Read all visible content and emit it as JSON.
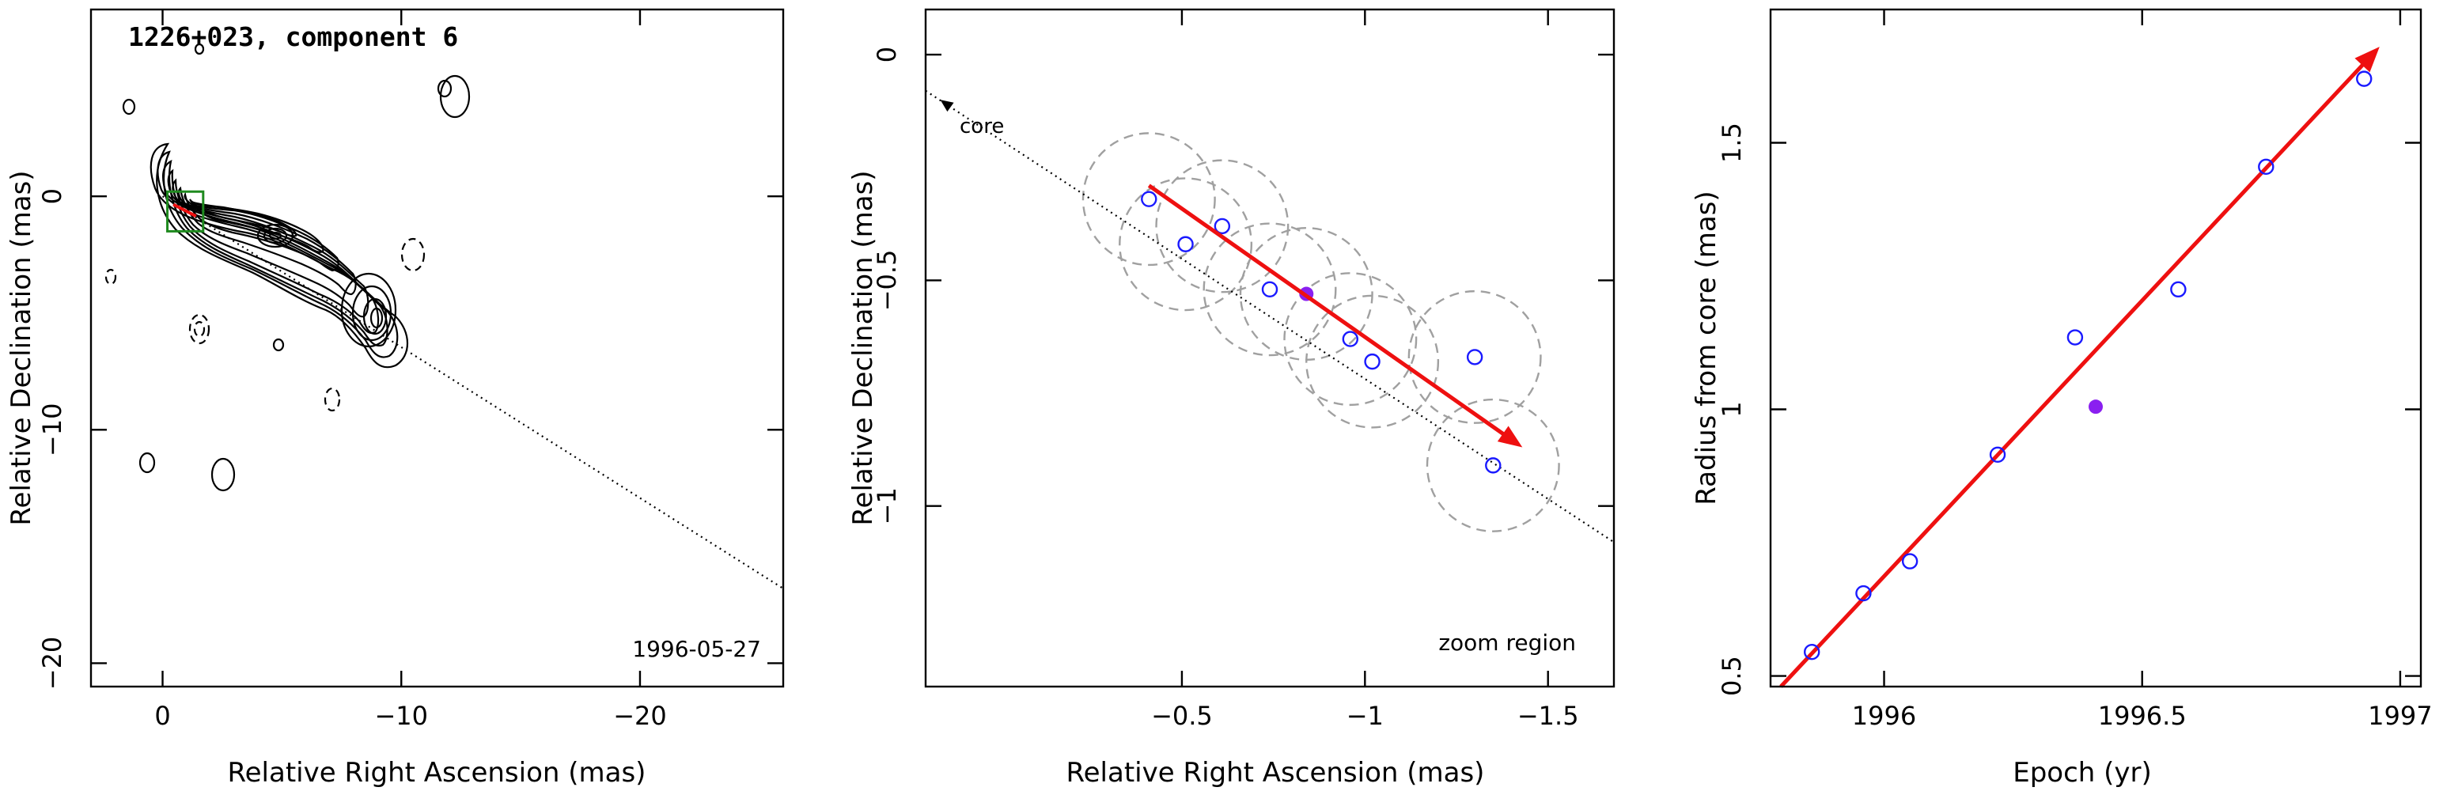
{
  "colors": {
    "motion_arrow": "#ee1010",
    "open_markers": "#1a1aff",
    "highlight_marker": "#8a1ff0",
    "beam_circles": "#a0a0a0",
    "zoom_box": "#1f8a1f"
  },
  "chart_data": [
    {
      "type": "scatter",
      "panel": "contour-map",
      "title": "1226+023, component 6",
      "annotation": "1996-05-27",
      "xlabel": "Relative Right Ascension (mas)",
      "ylabel": "Relative Declination (mas)",
      "xlim": [
        3,
        -26
      ],
      "ylim": [
        8,
        -21
      ],
      "xticks": [
        0,
        -10,
        -20
      ],
      "xtick_labels": [
        "0",
        "−10",
        "−20"
      ],
      "yticks": [
        0,
        -10,
        -20
      ],
      "ytick_labels": [
        "0",
        "−10",
        "−20"
      ],
      "x_axis_reversed": true,
      "note": "Jet contour map with dotted line along the component trajectory",
      "trajectory_line": {
        "x": [
          0,
          -26
        ],
        "y": [
          0,
          -16.8
        ]
      },
      "zoom_region": {
        "x": [
          -0.2,
          -1.7
        ],
        "y": [
          0.2,
          -1.5
        ]
      }
    },
    {
      "type": "scatter",
      "panel": "zoom-region",
      "xlabel": "Relative Right Ascension (mas)",
      "ylabel": "Relative Declination (mas)",
      "xlim": [
        0.2,
        -1.68
      ],
      "ylim": [
        0.1,
        -1.4
      ],
      "xticks": [
        -0.5,
        -1,
        -1.5
      ],
      "xtick_labels": [
        "−0.5",
        "−1",
        "−1.5"
      ],
      "yticks": [
        0,
        -0.5,
        -1
      ],
      "ytick_labels": [
        "0",
        "−0.5",
        "−1"
      ],
      "x_axis_reversed": true,
      "core_label": "core",
      "region_label": "zoom region",
      "core_line": {
        "x": [
          0.2,
          -1.68
        ],
        "y": [
          -0.08,
          -1.08
        ]
      },
      "series": [
        {
          "marker": "open-circle",
          "x": [
            -0.41,
            -0.51,
            -0.61,
            -0.74,
            -0.96,
            -1.02,
            -1.3,
            -1.35
          ],
          "y": [
            -0.32,
            -0.42,
            -0.38,
            -0.52,
            -0.63,
            -0.68,
            -0.67,
            -0.91
          ]
        },
        {
          "marker": "filled-circle",
          "x": [
            -0.84
          ],
          "y": [
            -0.53
          ]
        }
      ],
      "beam_radius_mas": 0.18,
      "motion_arrow": {
        "from": [
          -0.41,
          -0.29
        ],
        "to": [
          -1.43,
          -0.87
        ]
      }
    },
    {
      "type": "scatter",
      "panel": "radius-vs-epoch",
      "xlabel": "Epoch (yr)",
      "ylabel": "Radius from core (mas)",
      "xlim": [
        1995.78,
        1997.04
      ],
      "ylim": [
        0.48,
        1.75
      ],
      "xticks": [
        1996,
        1996.5,
        1997
      ],
      "xtick_labels": [
        "1996",
        "1996.5",
        "1997"
      ],
      "yticks": [
        0.5,
        1,
        1.5
      ],
      "ytick_labels": [
        "0.5",
        "1",
        "1.5"
      ],
      "series": [
        {
          "marker": "open-circle",
          "x": [
            1995.86,
            1995.96,
            1996.05,
            1996.22,
            1996.37,
            1996.57,
            1996.74,
            1996.93
          ],
          "y": [
            0.545,
            0.655,
            0.715,
            0.915,
            1.135,
            1.225,
            1.455,
            1.62
          ]
        },
        {
          "marker": "filled-circle",
          "x": [
            1996.41
          ],
          "y": [
            1.005
          ]
        }
      ],
      "fit_arrow": {
        "from": [
          1995.8,
          0.48
        ],
        "to": [
          1996.96,
          1.68
        ]
      }
    }
  ]
}
